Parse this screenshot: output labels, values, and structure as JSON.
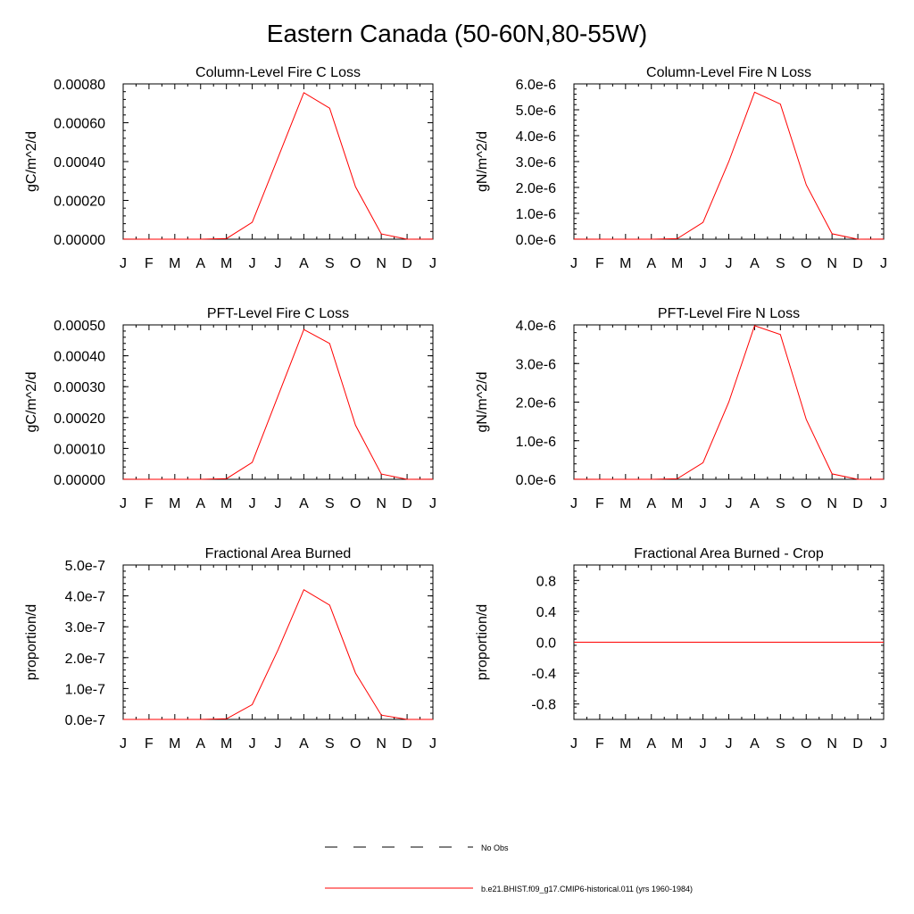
{
  "figure": {
    "title": "Eastern Canada (50-60N,80-55W)",
    "legend": [
      {
        "label": "No Obs",
        "color": "#000000",
        "style": "dashed"
      },
      {
        "label": "b.e21.BHIST.f09_g17.CMIP6-historical.011 (yrs 1960-1984)",
        "color": "#ff0000",
        "style": "solid"
      }
    ]
  },
  "chart_data": [
    {
      "type": "line",
      "title": "Column-Level Fire C Loss",
      "ylabel": "gC/m^2/d",
      "xticklabels": [
        "J",
        "F",
        "M",
        "A",
        "M",
        "J",
        "J",
        "A",
        "S",
        "O",
        "N",
        "D",
        "J"
      ],
      "ylim": [
        0,
        0.0008
      ],
      "yticks": [
        0,
        0.0002,
        0.0004,
        0.0006,
        0.0008
      ],
      "yticklabels": [
        "0.00000",
        "0.00020",
        "0.00040",
        "0.00060",
        "0.00080"
      ],
      "series": [
        {
          "color": "#ff0000",
          "x": [
            1,
            2,
            3,
            4,
            5,
            6,
            7,
            8,
            9,
            10,
            11,
            12,
            13
          ],
          "values": [
            3e-07,
            0,
            0,
            0,
            3e-06,
            8.7e-05,
            0.00042,
            0.000755,
            0.000675,
            0.00027,
            2.7e-05,
            0,
            3e-07
          ]
        }
      ]
    },
    {
      "type": "line",
      "title": "Column-Level Fire N Loss",
      "ylabel": "gN/m^2/d",
      "xticklabels": [
        "J",
        "F",
        "M",
        "A",
        "M",
        "J",
        "J",
        "A",
        "S",
        "O",
        "N",
        "D",
        "J"
      ],
      "ylim": [
        0,
        6e-06
      ],
      "yticks": [
        0,
        1e-06,
        2e-06,
        3e-06,
        4e-06,
        5e-06,
        6e-06
      ],
      "yticklabels": [
        "0.0e-6",
        "1.0e-6",
        "2.0e-6",
        "3.0e-6",
        "4.0e-6",
        "5.0e-6",
        "6.0e-6"
      ],
      "series": [
        {
          "color": "#ff0000",
          "x": [
            1,
            2,
            3,
            4,
            5,
            6,
            7,
            8,
            9,
            10,
            11,
            12,
            13
          ],
          "values": [
            3e-09,
            0,
            0,
            0,
            2e-08,
            6.5e-07,
            3e-06,
            5.68e-06,
            5.22e-06,
            2.1e-06,
            2.1e-07,
            0,
            3e-09
          ]
        }
      ]
    },
    {
      "type": "line",
      "title": "PFT-Level Fire C Loss",
      "ylabel": "gC/m^2/d",
      "xticklabels": [
        "J",
        "F",
        "M",
        "A",
        "M",
        "J",
        "J",
        "A",
        "S",
        "O",
        "N",
        "D",
        "J"
      ],
      "ylim": [
        0,
        0.0005
      ],
      "yticks": [
        0,
        0.0001,
        0.0002,
        0.0003,
        0.0004,
        0.0005
      ],
      "yticklabels": [
        "0.00000",
        "0.00010",
        "0.00020",
        "0.00030",
        "0.00040",
        "0.00050"
      ],
      "series": [
        {
          "color": "#ff0000",
          "x": [
            1,
            2,
            3,
            4,
            5,
            6,
            7,
            8,
            9,
            10,
            11,
            12,
            13
          ],
          "values": [
            2e-07,
            0,
            0,
            0,
            2e-06,
            5.5e-05,
            0.00027,
            0.000485,
            0.00044,
            0.000175,
            1.7e-05,
            0,
            2e-07
          ]
        }
      ]
    },
    {
      "type": "line",
      "title": "PFT-Level Fire N Loss",
      "ylabel": "gN/m^2/d",
      "xticklabels": [
        "J",
        "F",
        "M",
        "A",
        "M",
        "J",
        "J",
        "A",
        "S",
        "O",
        "N",
        "D",
        "J"
      ],
      "ylim": [
        0,
        4e-06
      ],
      "yticks": [
        0,
        1e-06,
        2e-06,
        3e-06,
        4e-06
      ],
      "yticklabels": [
        "0.0e-6",
        "1.0e-6",
        "2.0e-6",
        "3.0e-6",
        "4.0e-6"
      ],
      "series": [
        {
          "color": "#ff0000",
          "x": [
            1,
            2,
            3,
            4,
            5,
            6,
            7,
            8,
            9,
            10,
            11,
            12,
            13
          ],
          "values": [
            2e-09,
            0,
            0,
            0,
            1.5e-08,
            4.3e-07,
            2e-06,
            3.98e-06,
            3.75e-06,
            1.55e-06,
            1.4e-07,
            0,
            2e-09
          ]
        }
      ]
    },
    {
      "type": "line",
      "title": "Fractional Area Burned",
      "ylabel": "proportion/d",
      "xticklabels": [
        "J",
        "F",
        "M",
        "A",
        "M",
        "J",
        "J",
        "A",
        "S",
        "O",
        "N",
        "D",
        "J"
      ],
      "ylim": [
        0,
        5e-07
      ],
      "yticks": [
        0,
        1e-07,
        2e-07,
        3e-07,
        4e-07,
        5e-07
      ],
      "yticklabels": [
        "0.0e-7",
        "1.0e-7",
        "2.0e-7",
        "3.0e-7",
        "4.0e-7",
        "5.0e-7"
      ],
      "series": [
        {
          "color": "#ff0000",
          "x": [
            1,
            2,
            3,
            4,
            5,
            6,
            7,
            8,
            9,
            10,
            11,
            12,
            13
          ],
          "values": [
            2e-11,
            0,
            0,
            0,
            2e-09,
            4.8e-08,
            2.25e-07,
            4.2e-07,
            3.7e-07,
            1.5e-07,
            1.4e-08,
            0,
            2e-11
          ]
        }
      ]
    },
    {
      "type": "line",
      "title": "Fractional Area Burned - Crop",
      "ylabel": "proportion/d",
      "xticklabels": [
        "J",
        "F",
        "M",
        "A",
        "M",
        "J",
        "J",
        "A",
        "S",
        "O",
        "N",
        "D",
        "J"
      ],
      "ylim": [
        -1,
        1
      ],
      "yticks": [
        -0.8,
        -0.4,
        0,
        0.4,
        0.8
      ],
      "yticklabels": [
        "-0.8",
        "-0.4",
        "0.0",
        "0.4",
        "0.8"
      ],
      "series": [
        {
          "color": "#ff0000",
          "x": [
            1,
            2,
            3,
            4,
            5,
            6,
            7,
            8,
            9,
            10,
            11,
            12,
            13
          ],
          "values": [
            0,
            0,
            0,
            0,
            0,
            0,
            0,
            0,
            0,
            0,
            0,
            0,
            0
          ]
        }
      ]
    }
  ]
}
